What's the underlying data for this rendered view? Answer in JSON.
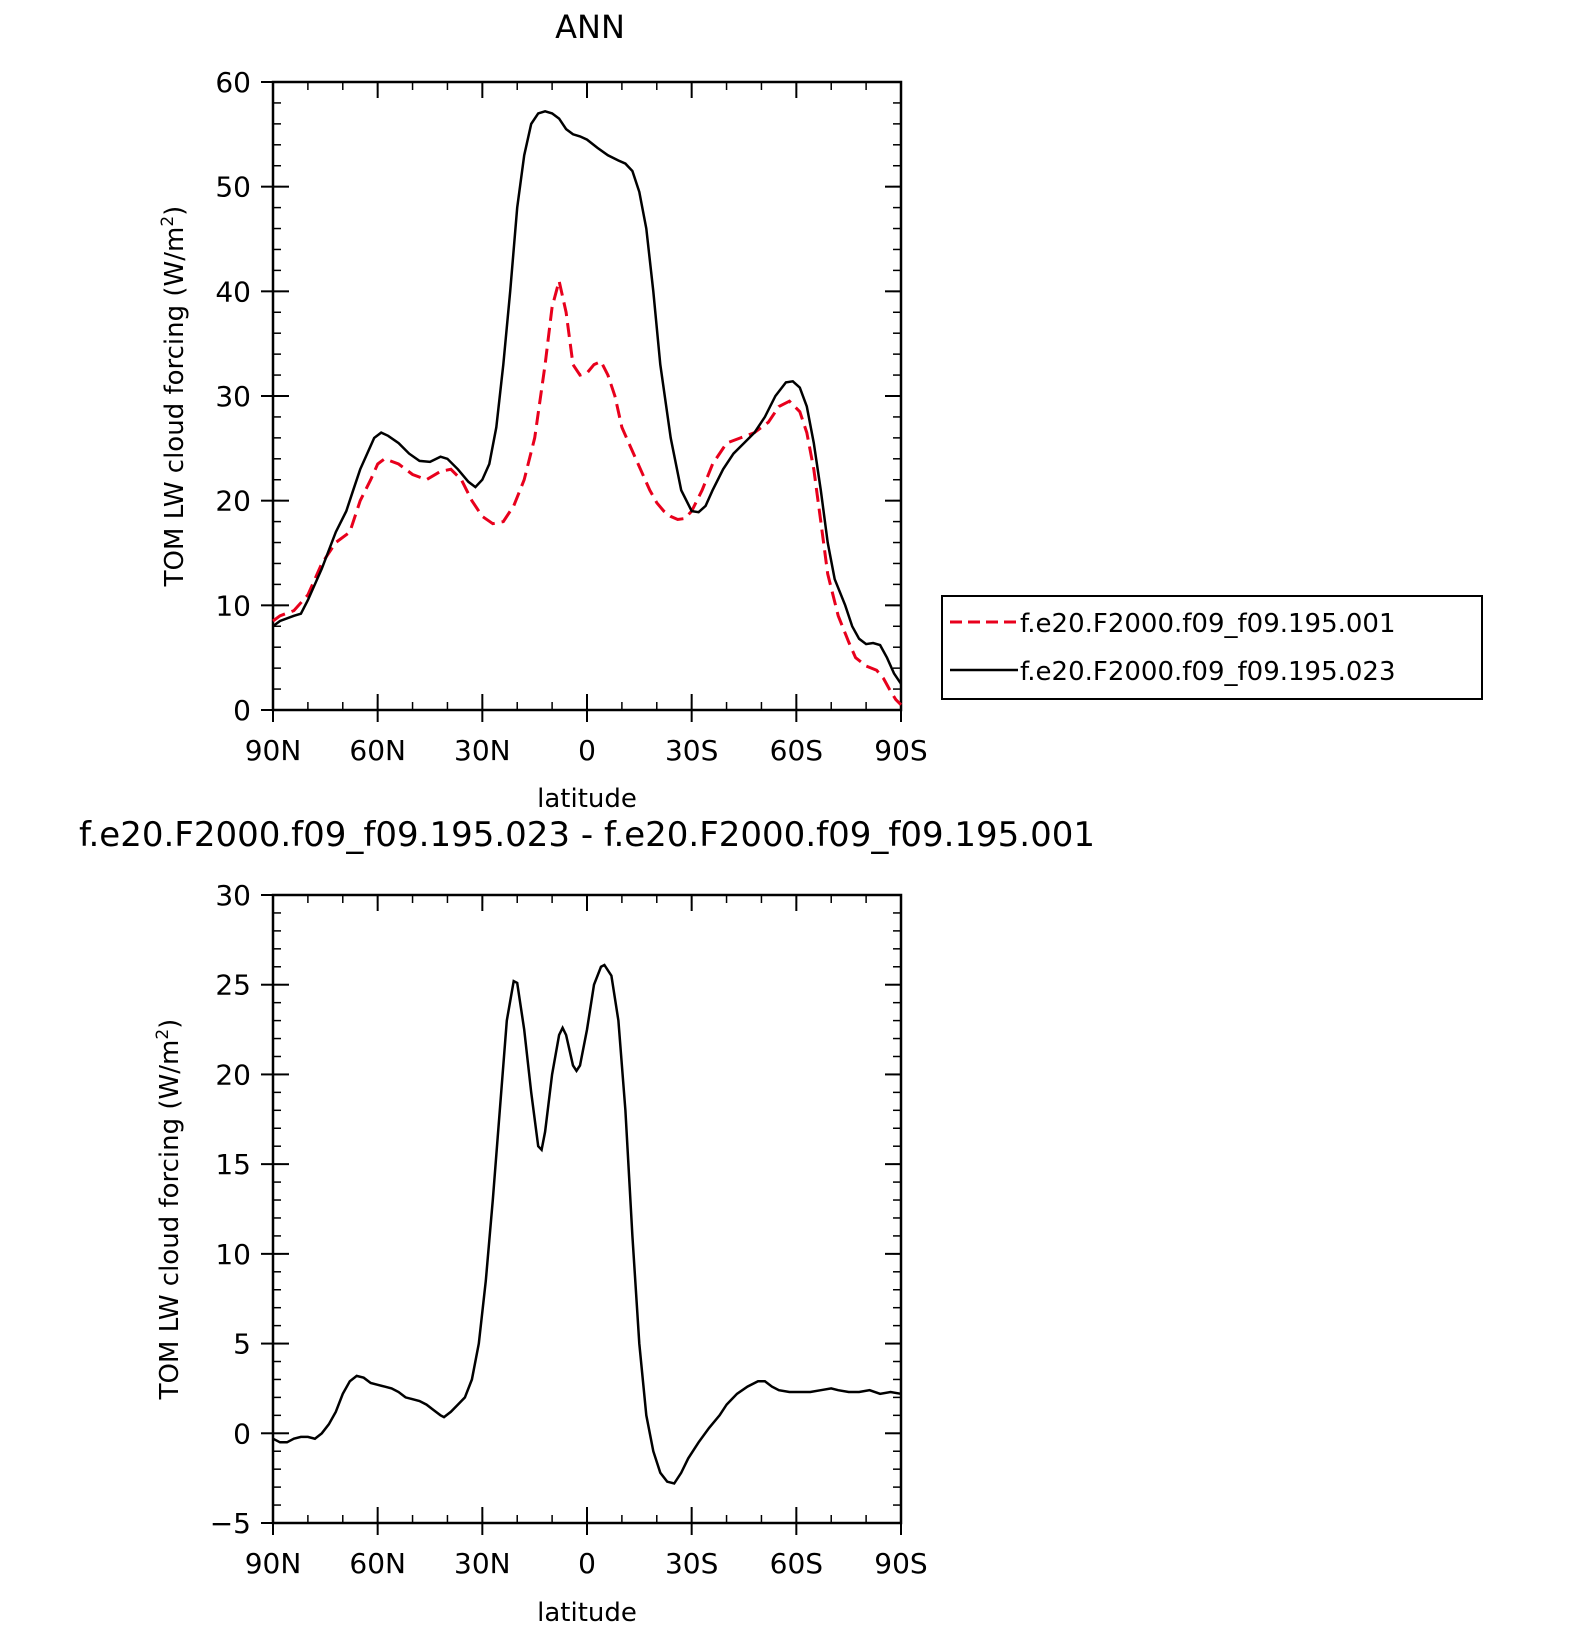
{
  "chart_data": [
    {
      "type": "line",
      "title": "ANN",
      "xlabel": "latitude",
      "ylabel_main": "TOM LW cloud forcing (W/m",
      "ylabel_sup": "2",
      "ylabel_close": ")",
      "xlim": [
        90,
        -90
      ],
      "ylim": [
        0,
        60
      ],
      "xticks": [
        {
          "value": 90,
          "label": "90N"
        },
        {
          "value": 60,
          "label": "60N"
        },
        {
          "value": 30,
          "label": "30N"
        },
        {
          "value": 0,
          "label": "0"
        },
        {
          "value": -30,
          "label": "30S"
        },
        {
          "value": -60,
          "label": "60S"
        },
        {
          "value": -90,
          "label": "90S"
        }
      ],
      "yticks": [
        0,
        10,
        20,
        30,
        40,
        50,
        60
      ],
      "legend_position": "right",
      "series": [
        {
          "name": "f.e20.F2000.f09_f09.195.001",
          "color": "#e8001c",
          "dash": "dashed",
          "points": [
            [
              90,
              8.5
            ],
            [
              88,
              9
            ],
            [
              84,
              9.5
            ],
            [
              80,
              11
            ],
            [
              76,
              14
            ],
            [
              72,
              16
            ],
            [
              68,
              17
            ],
            [
              65,
              20
            ],
            [
              62,
              22
            ],
            [
              60,
              23.5
            ],
            [
              58,
              24
            ],
            [
              54,
              23.5
            ],
            [
              50,
              22.5
            ],
            [
              46,
              22
            ],
            [
              42,
              22.8
            ],
            [
              39,
              23
            ],
            [
              36,
              22
            ],
            [
              33,
              20
            ],
            [
              30,
              18.5
            ],
            [
              27,
              17.8
            ],
            [
              24,
              18
            ],
            [
              21,
              19.5
            ],
            [
              18,
              22
            ],
            [
              15,
              26
            ],
            [
              12,
              33
            ],
            [
              10,
              38.5
            ],
            [
              8,
              41
            ],
            [
              6,
              38
            ],
            [
              4,
              33
            ],
            [
              2,
              32
            ],
            [
              0,
              32.2
            ],
            [
              -2,
              33
            ],
            [
              -4,
              33.3
            ],
            [
              -6,
              32
            ],
            [
              -8,
              30
            ],
            [
              -10,
              27
            ],
            [
              -14,
              24
            ],
            [
              -18,
              21
            ],
            [
              -20,
              19.8
            ],
            [
              -22,
              19
            ],
            [
              -24,
              18.5
            ],
            [
              -26,
              18.2
            ],
            [
              -28,
              18.3
            ],
            [
              -30,
              19
            ],
            [
              -33,
              21
            ],
            [
              -36,
              23.5
            ],
            [
              -40,
              25.5
            ],
            [
              -44,
              26
            ],
            [
              -48,
              26.5
            ],
            [
              -52,
              27.5
            ],
            [
              -55,
              29
            ],
            [
              -58,
              29.5
            ],
            [
              -61,
              28.5
            ],
            [
              -63,
              26.5
            ],
            [
              -65,
              23
            ],
            [
              -67,
              18
            ],
            [
              -69,
              13
            ],
            [
              -72,
              9
            ],
            [
              -75,
              6.5
            ],
            [
              -77,
              5
            ],
            [
              -80,
              4.2
            ],
            [
              -83,
              3.8
            ],
            [
              -85,
              3
            ],
            [
              -87,
              1.8
            ],
            [
              -88.5,
              1
            ],
            [
              -90,
              0.5
            ]
          ]
        },
        {
          "name": "f.e20.F2000.f09_f09.195.023",
          "color": "#000000",
          "dash": "solid",
          "points": [
            [
              90,
              8
            ],
            [
              88,
              8.5
            ],
            [
              84,
              9
            ],
            [
              82,
              9.2
            ],
            [
              80,
              10.5
            ],
            [
              76,
              13.5
            ],
            [
              72,
              17
            ],
            [
              69,
              19
            ],
            [
              67,
              21
            ],
            [
              65,
              23
            ],
            [
              63,
              24.5
            ],
            [
              61,
              26
            ],
            [
              59,
              26.5
            ],
            [
              57,
              26.2
            ],
            [
              54,
              25.5
            ],
            [
              51,
              24.5
            ],
            [
              48,
              23.8
            ],
            [
              45,
              23.7
            ],
            [
              42,
              24.2
            ],
            [
              40,
              24
            ],
            [
              37,
              23
            ],
            [
              34,
              21.8
            ],
            [
              32,
              21.3
            ],
            [
              30,
              22
            ],
            [
              28,
              23.5
            ],
            [
              26,
              27
            ],
            [
              24,
              33
            ],
            [
              22,
              40
            ],
            [
              20,
              48
            ],
            [
              18,
              53
            ],
            [
              16,
              56
            ],
            [
              14,
              57
            ],
            [
              12,
              57.2
            ],
            [
              10,
              57
            ],
            [
              8,
              56.5
            ],
            [
              6,
              55.5
            ],
            [
              4,
              55
            ],
            [
              2,
              54.8
            ],
            [
              0,
              54.5
            ],
            [
              -3,
              53.7
            ],
            [
              -6,
              53
            ],
            [
              -9,
              52.5
            ],
            [
              -11,
              52.2
            ],
            [
              -13,
              51.5
            ],
            [
              -15,
              49.5
            ],
            [
              -17,
              46
            ],
            [
              -19,
              40
            ],
            [
              -21,
              33
            ],
            [
              -24,
              26
            ],
            [
              -27,
              21
            ],
            [
              -30,
              19
            ],
            [
              -32,
              18.9
            ],
            [
              -34,
              19.5
            ],
            [
              -36,
              21
            ],
            [
              -39,
              23
            ],
            [
              -42,
              24.5
            ],
            [
              -45,
              25.5
            ],
            [
              -48,
              26.5
            ],
            [
              -51,
              28
            ],
            [
              -54,
              30
            ],
            [
              -57,
              31.3
            ],
            [
              -59,
              31.4
            ],
            [
              -61,
              30.8
            ],
            [
              -63,
              29
            ],
            [
              -65,
              25.5
            ],
            [
              -67,
              21
            ],
            [
              -69,
              16
            ],
            [
              -71,
              12.5
            ],
            [
              -74,
              10
            ],
            [
              -76,
              8
            ],
            [
              -78,
              6.8
            ],
            [
              -80,
              6.3
            ],
            [
              -82,
              6.4
            ],
            [
              -84,
              6.2
            ],
            [
              -86,
              5
            ],
            [
              -88,
              3.5
            ],
            [
              -90,
              2.5
            ]
          ]
        }
      ]
    },
    {
      "type": "line",
      "title": "f.e20.F2000.f09_f09.195.023 - f.e20.F2000.f09_f09.195.001",
      "xlabel": "latitude",
      "ylabel_main": "TOM LW cloud forcing (W/m",
      "ylabel_sup": "2",
      "ylabel_close": ")",
      "xlim": [
        90,
        -90
      ],
      "ylim": [
        -5,
        30
      ],
      "xticks": [
        {
          "value": 90,
          "label": "90N"
        },
        {
          "value": 60,
          "label": "60N"
        },
        {
          "value": 30,
          "label": "30N"
        },
        {
          "value": 0,
          "label": "0"
        },
        {
          "value": -30,
          "label": "30S"
        },
        {
          "value": -60,
          "label": "60S"
        },
        {
          "value": -90,
          "label": "90S"
        }
      ],
      "yticks": [
        -5,
        0,
        5,
        10,
        15,
        20,
        25,
        30
      ],
      "yticklabels": [
        "−5",
        "0",
        "5",
        "10",
        "15",
        "20",
        "25",
        "30"
      ],
      "series": [
        {
          "color": "#000000",
          "dash": "solid",
          "points": [
            [
              90,
              -0.3
            ],
            [
              88,
              -0.5
            ],
            [
              86,
              -0.5
            ],
            [
              84,
              -0.3
            ],
            [
              82,
              -0.2
            ],
            [
              80,
              -0.2
            ],
            [
              78,
              -0.3
            ],
            [
              76,
              0
            ],
            [
              74,
              0.5
            ],
            [
              72,
              1.2
            ],
            [
              70,
              2.2
            ],
            [
              68,
              2.9
            ],
            [
              66,
              3.2
            ],
            [
              64,
              3.1
            ],
            [
              62,
              2.8
            ],
            [
              60,
              2.7
            ],
            [
              58,
              2.6
            ],
            [
              56,
              2.5
            ],
            [
              54,
              2.3
            ],
            [
              52,
              2
            ],
            [
              50,
              1.9
            ],
            [
              48,
              1.8
            ],
            [
              46,
              1.6
            ],
            [
              44,
              1.3
            ],
            [
              42,
              1
            ],
            [
              41,
              0.9
            ],
            [
              39,
              1.2
            ],
            [
              37,
              1.6
            ],
            [
              35,
              2
            ],
            [
              33,
              3
            ],
            [
              31,
              5
            ],
            [
              29,
              8.5
            ],
            [
              27,
              13
            ],
            [
              25,
              18
            ],
            [
              23,
              23
            ],
            [
              21,
              25.2
            ],
            [
              20,
              25.1
            ],
            [
              18,
              22.5
            ],
            [
              16,
              19
            ],
            [
              14,
              16
            ],
            [
              13,
              15.8
            ],
            [
              12,
              16.8
            ],
            [
              10,
              20
            ],
            [
              8,
              22.2
            ],
            [
              7,
              22.6
            ],
            [
              6,
              22.2
            ],
            [
              4,
              20.5
            ],
            [
              3,
              20.2
            ],
            [
              2,
              20.5
            ],
            [
              0,
              22.5
            ],
            [
              -2,
              25
            ],
            [
              -4,
              26
            ],
            [
              -5,
              26.1
            ],
            [
              -7,
              25.5
            ],
            [
              -9,
              23
            ],
            [
              -11,
              18
            ],
            [
              -13,
              11
            ],
            [
              -15,
              5
            ],
            [
              -17,
              1
            ],
            [
              -19,
              -1
            ],
            [
              -21,
              -2.2
            ],
            [
              -23,
              -2.7
            ],
            [
              -25,
              -2.8
            ],
            [
              -27,
              -2.2
            ],
            [
              -29,
              -1.4
            ],
            [
              -32,
              -0.5
            ],
            [
              -35,
              0.3
            ],
            [
              -38,
              1
            ],
            [
              -40,
              1.6
            ],
            [
              -43,
              2.2
            ],
            [
              -46,
              2.6
            ],
            [
              -49,
              2.9
            ],
            [
              -51,
              2.9
            ],
            [
              -53,
              2.6
            ],
            [
              -55,
              2.4
            ],
            [
              -58,
              2.3
            ],
            [
              -61,
              2.3
            ],
            [
              -64,
              2.3
            ],
            [
              -67,
              2.4
            ],
            [
              -70,
              2.5
            ],
            [
              -72,
              2.4
            ],
            [
              -75,
              2.3
            ],
            [
              -78,
              2.3
            ],
            [
              -81,
              2.4
            ],
            [
              -84,
              2.2
            ],
            [
              -87,
              2.3
            ],
            [
              -90,
              2.2
            ]
          ]
        }
      ]
    }
  ]
}
